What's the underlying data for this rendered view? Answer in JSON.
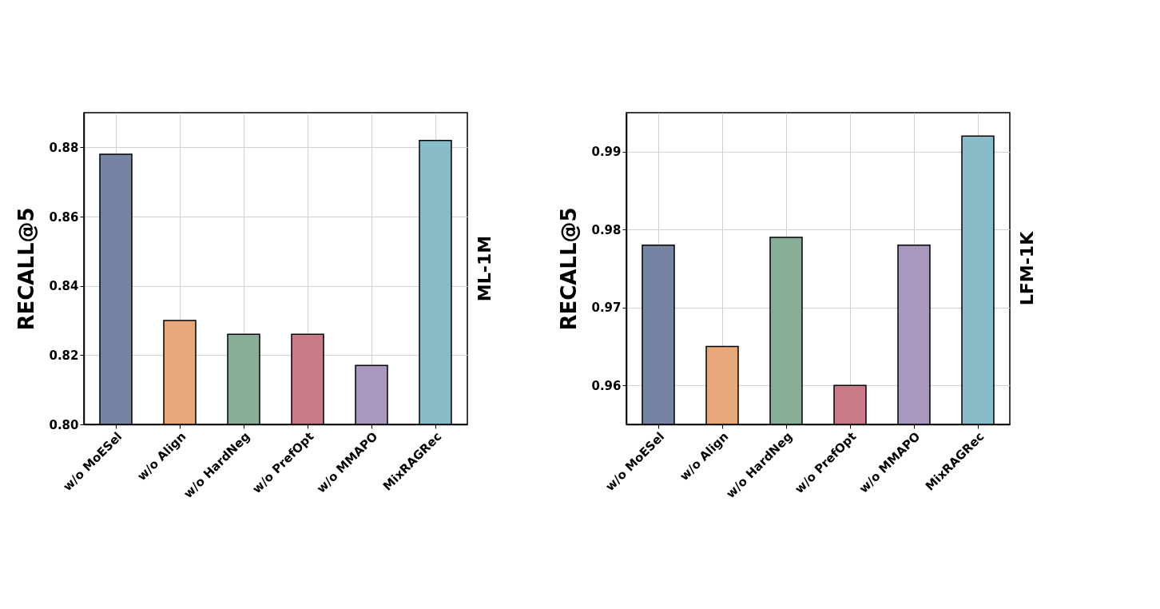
{
  "chart_data": [
    {
      "type": "bar",
      "ylabel": "RECALL@5",
      "y2label": "ML-1M",
      "categories": [
        "w/o MoESel",
        "w/o Align",
        "w/o HardNeg",
        "w/o PrefOpt",
        "w/o MMAPO",
        "MixRAGRec"
      ],
      "values": [
        0.878,
        0.83,
        0.826,
        0.826,
        0.817,
        0.882
      ],
      "colors": [
        "#7584a3",
        "#e8a97a",
        "#88ad96",
        "#c97b88",
        "#a898c0",
        "#88bcc8"
      ],
      "ylim": [
        0.8,
        0.89
      ],
      "yticks": [
        {
          "value": 0.8,
          "label": "0.80"
        },
        0.82,
        0.84,
        0.86,
        0.88
      ],
      "grid": true,
      "legend": false
    },
    {
      "type": "bar",
      "ylabel": "RECALL@5",
      "y2label": "LFM-1K",
      "categories": [
        "w/o MoESel",
        "w/o Align",
        "w/o HardNeg",
        "w/o PrefOpt",
        "w/o MMAPO",
        "MixRAGRec"
      ],
      "values": [
        0.978,
        0.965,
        0.979,
        0.96,
        0.978,
        0.992
      ],
      "colors": [
        "#7584a3",
        "#e8a97a",
        "#88ad96",
        "#c97b88",
        "#a898c0",
        "#88bcc8"
      ],
      "ylim": [
        0.955,
        0.995
      ],
      "yticks": [
        0.96,
        0.97,
        0.98,
        0.99
      ],
      "grid": true,
      "legend": false
    }
  ]
}
